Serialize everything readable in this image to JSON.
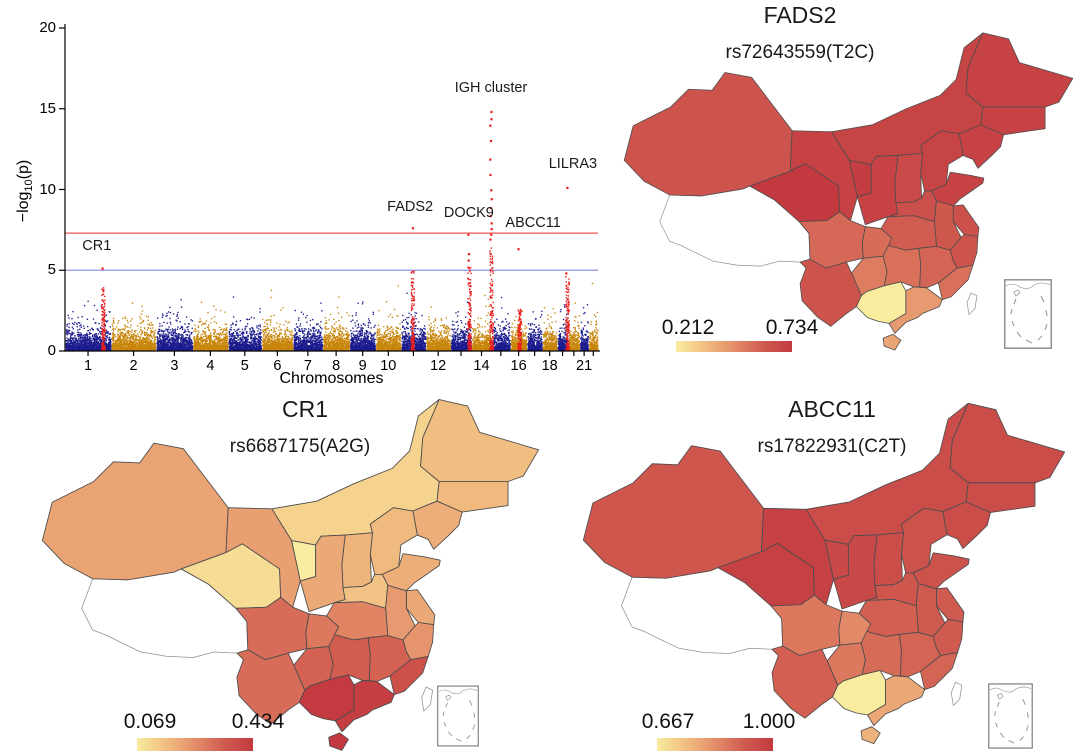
{
  "page": {
    "background": "#ffffff"
  },
  "map_style": {
    "gradient_stops": [
      "#F9EC9F",
      "#F1BE81",
      "#E48E69",
      "#D05B50",
      "#C23940"
    ],
    "no_data_color": "#ffffff",
    "border_color": "#4d4d4d",
    "no_data_border_color": "#909090",
    "inset_border_color": "#888888",
    "inset_dash_color": "#9a9a9a"
  },
  "chart_data": [
    {
      "type": "scatter",
      "kind": "manhattan-plot",
      "xlabel": "Chromosomes",
      "ylabel": {
        "prefix": "−log",
        "sub": "10",
        "suffix": "(p)"
      },
      "ylim": [
        0,
        20
      ],
      "yticks": [
        0,
        5,
        10,
        15,
        20
      ],
      "xticks": [
        {
          "label": "1",
          "chromosome": 1
        },
        {
          "label": "2",
          "chromosome": 2
        },
        {
          "label": "3",
          "chromosome": 3
        },
        {
          "label": "4",
          "chromosome": 4
        },
        {
          "label": "5",
          "chromosome": 5
        },
        {
          "label": "6",
          "chromosome": 6
        },
        {
          "label": "7",
          "chromosome": 7
        },
        {
          "label": "8",
          "chromosome": 8
        },
        {
          "label": "9",
          "chromosome": 9
        },
        {
          "label": "10",
          "chromosome": 10
        },
        {
          "label": "12",
          "chromosome": 12
        },
        {
          "label": "14",
          "chromosome": 14
        },
        {
          "label": "16",
          "chromosome": 16
        },
        {
          "label": "18",
          "chromosome": 18
        },
        {
          "label": "21",
          "chromosome": 21
        }
      ],
      "chromosome_sizes_mb": [
        249,
        243,
        198,
        191,
        181,
        171,
        159,
        146,
        141,
        136,
        135,
        133,
        114,
        107,
        102,
        90,
        83,
        80,
        59,
        63,
        48,
        51
      ],
      "colors": {
        "odd_chromosome": "#1c1c8e",
        "even_chromosome": "#c8860b",
        "highlight": "#ea1d1d",
        "genomewide_line": "#f25555",
        "suggestive_line": "#8f92e3",
        "axis": "#000000"
      },
      "threshold_lines": [
        {
          "name": "genome-wide significance",
          "y": 7.3,
          "color": "#f25555"
        },
        {
          "name": "suggestive significance",
          "y": 5.0,
          "color": "#8f92e3"
        }
      ],
      "background_point_max": 4.35,
      "peaks": [
        {
          "label": "CR1",
          "chromosome": 1,
          "position_frac": 0.82,
          "top_points": [
            5.1
          ],
          "column_max": 3.9,
          "label_y": 6.45,
          "label_dx": -6
        },
        {
          "label": "FADS2",
          "chromosome": 11,
          "position_frac": 0.45,
          "top_points": [
            7.6
          ],
          "column_max": 5.0,
          "label_y": 8.85,
          "label_dx": -2
        },
        {
          "label": "DOCK9",
          "chromosome": 13,
          "position_frac": 0.87,
          "top_points": [
            7.2,
            6.0,
            5.6
          ],
          "column_max": 5.2,
          "label_y": 8.5,
          "label_dx": 0
        },
        {
          "label": "IGH cluster",
          "chromosome": 14,
          "position_frac": 0.98,
          "top_points": [
            14.8,
            14.35,
            13.95,
            13.0,
            11.85,
            10.9,
            9.95,
            9.4,
            8.85,
            8.35,
            7.9,
            7.55,
            7.2,
            6.9
          ],
          "column_max": 6.6,
          "label_y": 16.2,
          "label_dx": 0
        },
        {
          "label": "ABCC11",
          "chromosome": 16,
          "position_frac": 0.53,
          "top_points": [
            6.3
          ],
          "column_max": 2.6,
          "label_y": 7.85,
          "label_dx": 14
        },
        {
          "label": "LILRA3",
          "chromosome": 19,
          "position_frac": 0.9,
          "top_points": [
            10.1,
            4.8
          ],
          "column_max": 4.6,
          "label_y": 11.5,
          "label_dx": 6
        }
      ]
    },
    {
      "type": "choropleth",
      "region": "China provinces",
      "title": "FADS2",
      "subtitle": "rs72643559(T2C)",
      "scale_min_label": "0.212",
      "scale_max_label": "0.734",
      "scale_min": 0.212,
      "scale_max": 0.734,
      "values": {
        "xinjiang": 0.63,
        "tibet": null,
        "qinghai": 0.734,
        "gansu": 0.7,
        "ningxia": 0.72,
        "neimenggu": 0.69,
        "heilongjiang": 0.7,
        "jilin": 0.7,
        "liaoning": 0.7,
        "hebei": 0.69,
        "shanxi": 0.67,
        "shaanxi": 0.7,
        "shandong": 0.7,
        "henan": 0.65,
        "jiangsu": 0.64,
        "anhui": 0.62,
        "hubei": 0.6,
        "zhejiang": 0.63,
        "jiangxi": 0.58,
        "hunan": 0.55,
        "sichuan": 0.57,
        "chongqing": 0.56,
        "guizhou": 0.52,
        "yunnan": 0.63,
        "fujian": 0.55,
        "guangdong": 0.44,
        "guangxi": 0.212,
        "hainan": 0.41,
        "taiwan": null
      }
    },
    {
      "type": "choropleth",
      "region": "China provinces",
      "title": "CR1",
      "subtitle": "rs6687175(A2G)",
      "scale_min_label": "0.069",
      "scale_max_label": "0.434",
      "scale_min": 0.069,
      "scale_max": 0.434,
      "values": {
        "xinjiang": 0.21,
        "tibet": null,
        "qinghai": 0.1,
        "gansu": 0.22,
        "ningxia": 0.07,
        "neimenggu": 0.12,
        "heilongjiang": 0.16,
        "jilin": 0.17,
        "liaoning": 0.19,
        "hebei": 0.17,
        "shanxi": 0.18,
        "shaanxi": 0.2,
        "shandong": 0.19,
        "henan": 0.15,
        "jiangsu": 0.2,
        "anhui": 0.23,
        "hubei": 0.27,
        "zhejiang": 0.24,
        "jiangxi": 0.33,
        "hunan": 0.34,
        "sichuan": 0.31,
        "chongqing": 0.29,
        "guizhou": 0.33,
        "yunnan": 0.31,
        "fujian": 0.37,
        "guangdong": 0.42,
        "guangxi": 0.43,
        "hainan": 0.434,
        "taiwan": null
      }
    },
    {
      "type": "choropleth",
      "region": "China provinces",
      "title": "ABCC11",
      "subtitle": "rs17822931(C2T)",
      "scale_min_label": "0.667",
      "scale_max_label": "1.000",
      "scale_min": 0.667,
      "scale_max": 1.0,
      "values": {
        "xinjiang": 0.93,
        "tibet": null,
        "qinghai": 0.98,
        "gansu": 0.98,
        "ningxia": 0.96,
        "neimenggu": 0.95,
        "heilongjiang": 0.95,
        "jilin": 0.95,
        "liaoning": 0.95,
        "hebei": 0.94,
        "shanxi": 0.95,
        "shaanxi": 0.96,
        "shandong": 0.94,
        "henan": 0.93,
        "jiangsu": 0.92,
        "anhui": 0.92,
        "hubei": 0.91,
        "zhejiang": 0.92,
        "jiangxi": 0.9,
        "hunan": 0.89,
        "sichuan": 0.87,
        "chongqing": 0.84,
        "guizhou": 0.87,
        "yunnan": 0.91,
        "fujian": 0.9,
        "guangdong": 0.79,
        "guangxi": 0.667,
        "hainan": 0.77,
        "taiwan": null
      }
    }
  ]
}
